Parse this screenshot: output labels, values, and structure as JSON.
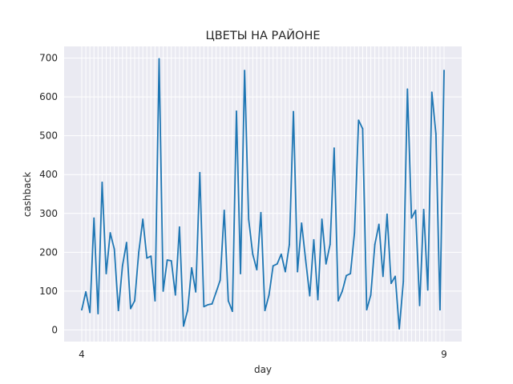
{
  "chart_data": {
    "type": "line",
    "title": "ЦВЕТЫ НА РАЙОНЕ",
    "xlabel": "day",
    "ylabel": "cashback",
    "ylim": [
      -30,
      730
    ],
    "yticks": [
      0,
      100,
      200,
      300,
      400,
      500,
      600,
      700
    ],
    "grid": true,
    "background": "#EAEAF2",
    "grid_color": "#FFFFFF",
    "line_color": "#1F77B4",
    "x_first_tick_label": "4",
    "x_last_tick_label": "9",
    "series": [
      {
        "values": [
          52,
          98,
          45,
          288,
          42,
          380,
          145,
          250,
          208,
          50,
          165,
          225,
          55,
          75,
          200,
          285,
          185,
          190,
          75,
          698,
          100,
          180,
          178,
          90,
          265,
          10,
          50,
          160,
          98,
          405,
          60,
          65,
          67,
          97,
          128,
          308,
          75,
          48,
          563,
          145,
          668,
          285,
          195,
          155,
          302,
          50,
          90,
          165,
          170,
          195,
          150,
          220,
          562,
          150,
          275,
          180,
          88,
          232,
          78,
          285,
          170,
          220,
          468,
          75,
          100,
          140,
          145,
          250,
          540,
          518,
          52,
          90,
          220,
          272,
          138,
          298,
          120,
          138,
          3,
          125,
          620,
          288,
          308,
          63,
          310,
          103,
          612,
          505,
          52,
          668
        ]
      }
    ]
  }
}
